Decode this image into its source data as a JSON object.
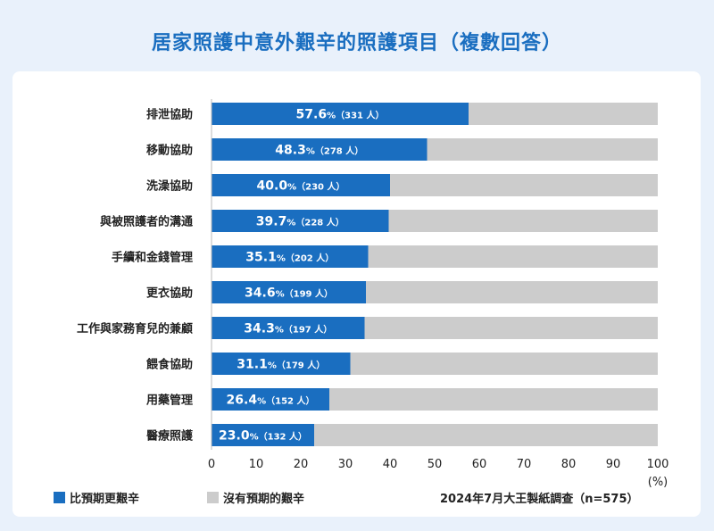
{
  "title": "居家照護中意外艱辛的照護項目（複數回答）",
  "colors": {
    "primary": "#1a6ec0",
    "remainder": "#cccccc",
    "background": "#e9f1fb",
    "card": "#ffffff"
  },
  "legend": {
    "primary_label": "比預期更艱辛",
    "remainder_label": "沒有預期的艱辛"
  },
  "source_note": "2024年7月大王製紙調查（n=575）",
  "chart_data": {
    "type": "bar",
    "orientation": "horizontal",
    "stacked": true,
    "title": "居家照護中意外艱辛的照護項目（複數回答）",
    "categories": [
      "排泄協助",
      "移動協助",
      "洗澡協助",
      "與被照護者的溝通",
      "手續和金錢管理",
      "更衣協助",
      "工作與家務育兒的兼顧",
      "餵食協助",
      "用藥管理",
      "醫療照護"
    ],
    "series": [
      {
        "name": "比預期更艱辛",
        "values": [
          57.6,
          48.3,
          40.0,
          39.7,
          35.1,
          34.6,
          34.3,
          31.1,
          26.4,
          23.0
        ]
      },
      {
        "name": "沒有預期的艱辛",
        "values": [
          42.4,
          51.7,
          60.0,
          60.3,
          64.9,
          65.4,
          65.7,
          68.9,
          73.6,
          77.0
        ]
      }
    ],
    "value_labels": [
      "57.6",
      "48.3",
      "40.0",
      "39.7",
      "35.1",
      "34.6",
      "34.3",
      "31.1",
      "26.4",
      "23.0"
    ],
    "value_unit": "%",
    "counts": [
      "（331 人）",
      "（278 人）",
      "（230 人）",
      "（228 人）",
      "（202 人）",
      "（199 人）",
      "（197 人）",
      "（179 人）",
      "（152 人）",
      "（132 人）"
    ],
    "x_ticks": [
      "0",
      "10",
      "20",
      "30",
      "40",
      "50",
      "60",
      "70",
      "80",
      "90",
      "100"
    ],
    "x_unit_label": "(%)",
    "xlim": [
      0,
      100
    ],
    "grid": false,
    "legend_position": "bottom-left"
  }
}
